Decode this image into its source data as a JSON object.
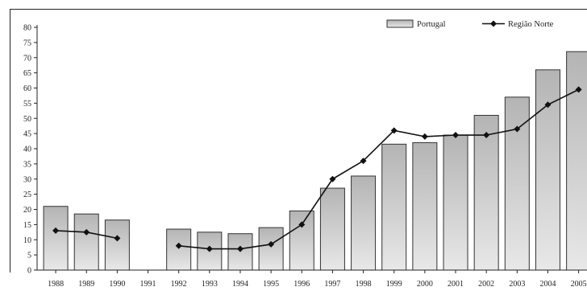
{
  "chart_data": {
    "type": "bar",
    "categories": [
      "1988",
      "1989",
      "1990",
      "1991",
      "1992",
      "1993",
      "1994",
      "1995",
      "1996",
      "1997",
      "1998",
      "1999",
      "2000",
      "2001",
      "2002",
      "2003",
      "2004",
      "2005"
    ],
    "series": [
      {
        "name": "Portugal",
        "type": "bar",
        "values": [
          21,
          18.5,
          16.5,
          null,
          13.5,
          12.5,
          12,
          14,
          19.5,
          27,
          31,
          41.5,
          42,
          44.5,
          51,
          57,
          66,
          72
        ]
      },
      {
        "name": "Região Norte",
        "type": "line",
        "values": [
          13,
          12.5,
          10.5,
          null,
          8,
          7,
          7,
          8.5,
          15,
          30,
          36,
          46,
          44,
          44.5,
          44.5,
          46.5,
          54.5,
          59.5
        ]
      }
    ],
    "yticks": [
      "0",
      "5",
      "10",
      "15",
      "20",
      "25",
      "30",
      "35",
      "40",
      "45",
      "50",
      "55",
      "60",
      "65",
      "70",
      "75",
      "80"
    ],
    "ylim": [
      0,
      80
    ],
    "legend_position": "top-right",
    "colors": {
      "bar_fill": "#c9c9c9",
      "bar_edge": "#333333",
      "line": "#111111",
      "axis": "#222222"
    }
  }
}
